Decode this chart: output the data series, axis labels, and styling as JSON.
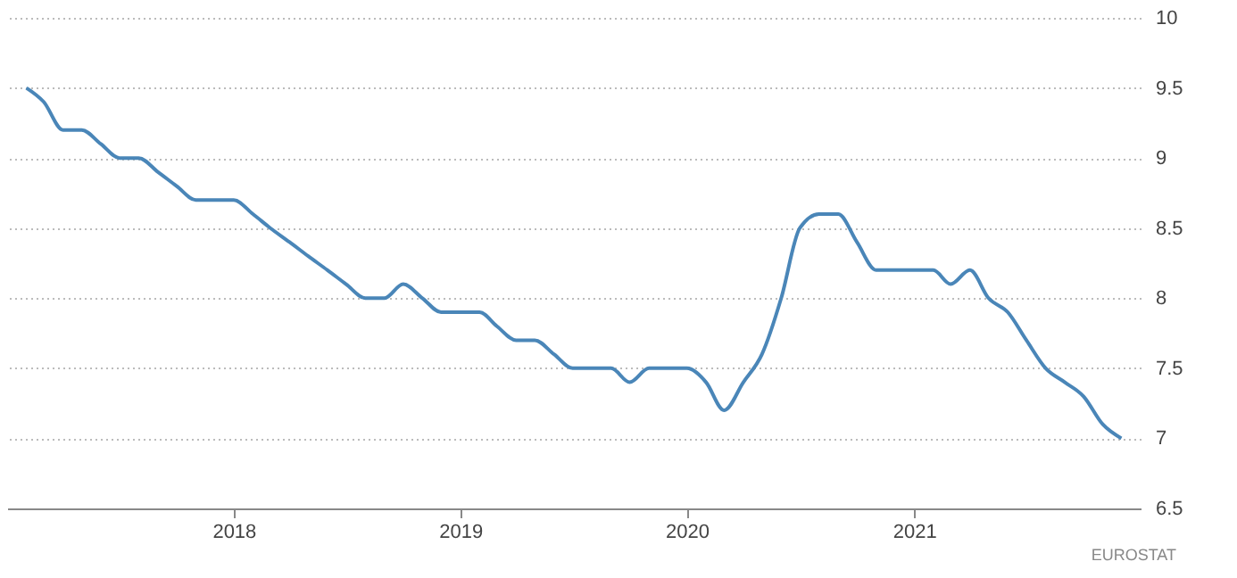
{
  "chart_data": {
    "type": "line",
    "x": [
      "2017-02",
      "2017-03",
      "2017-04",
      "2017-05",
      "2017-06",
      "2017-07",
      "2017-08",
      "2017-09",
      "2017-10",
      "2017-11",
      "2017-12",
      "2018-01",
      "2018-02",
      "2018-03",
      "2018-04",
      "2018-05",
      "2018-06",
      "2018-07",
      "2018-08",
      "2018-09",
      "2018-10",
      "2018-11",
      "2018-12",
      "2019-01",
      "2019-02",
      "2019-03",
      "2019-04",
      "2019-05",
      "2019-06",
      "2019-07",
      "2019-08",
      "2019-09",
      "2019-10",
      "2019-11",
      "2019-12",
      "2020-01",
      "2020-02",
      "2020-03",
      "2020-04",
      "2020-05",
      "2020-06",
      "2020-07",
      "2020-08",
      "2020-09",
      "2020-10",
      "2020-11",
      "2020-12",
      "2021-01",
      "2021-02",
      "2021-03",
      "2021-04",
      "2021-05",
      "2021-06",
      "2021-07",
      "2021-08",
      "2021-09",
      "2021-10",
      "2021-11",
      "2021-12"
    ],
    "series": [
      {
        "color": "#4a86b8",
        "values": [
          9.5,
          9.4,
          9.2,
          9.2,
          9.1,
          9.0,
          9.0,
          8.9,
          8.8,
          8.7,
          8.7,
          8.7,
          8.6,
          8.5,
          8.4,
          8.3,
          8.2,
          8.1,
          8.0,
          8.0,
          8.1,
          8.0,
          7.9,
          7.9,
          7.9,
          7.8,
          7.7,
          7.7,
          7.6,
          7.5,
          7.5,
          7.5,
          7.4,
          7.5,
          7.5,
          7.5,
          7.4,
          7.2,
          7.4,
          7.6,
          8.0,
          8.5,
          8.6,
          8.6,
          8.4,
          8.2,
          8.2,
          8.2,
          8.2,
          8.1,
          8.2,
          8.0,
          7.9,
          7.7,
          7.5,
          7.4,
          7.3,
          7.1,
          7.0
        ]
      }
    ],
    "xlim": [
      "2017-01",
      "2022-01"
    ],
    "xticks": [
      "2018",
      "2019",
      "2020",
      "2021"
    ],
    "ylim": [
      6.5,
      10
    ],
    "yticks": [
      6.5,
      7,
      7.5,
      8,
      8.5,
      9,
      9.5,
      10
    ],
    "grid": "y",
    "marker": "none",
    "line_style": "solid",
    "annotations": [
      "EUROSTAT"
    ]
  }
}
